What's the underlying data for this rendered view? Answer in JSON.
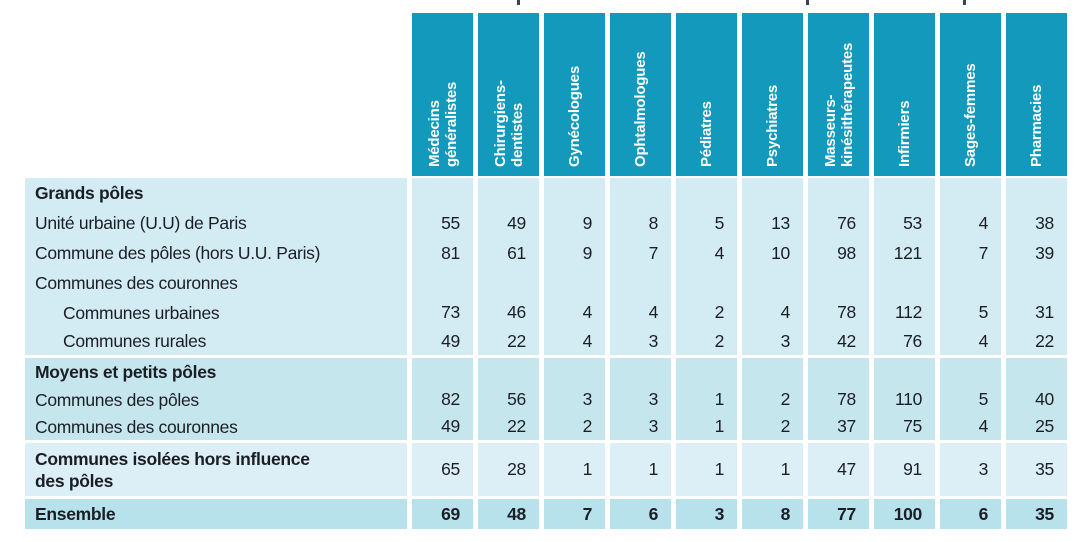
{
  "colors": {
    "header_teal": "#1299bb",
    "section_grands_poles_bg": "#d3ecf3",
    "section_moyens_petits_bg": "#c6e6ee",
    "section_isolees_bg": "#dceff6",
    "section_ensemble_bg": "#b7e1eb",
    "header_text": "#ffffff",
    "body_text": "#1c1e26"
  },
  "table": {
    "column_headers": [
      "Médecins\ngénéralistes",
      "Chirurgiens-\ndentistes",
      "Gynécologues",
      "Ophtalmologues",
      "Pédiatres",
      "Psychiatres",
      "Masseurs-\nkinésithérapeutes",
      "Infirmiers",
      "Sages-femmes",
      "Pharmacies"
    ],
    "rows": [
      {
        "label": "Grands pôles",
        "bold": true,
        "indent": false,
        "section": 1,
        "values": null
      },
      {
        "label": "Unité urbaine (U.U) de Paris",
        "bold": false,
        "indent": false,
        "section": 1,
        "values": [
          55,
          49,
          9,
          8,
          5,
          13,
          76,
          53,
          4,
          38
        ]
      },
      {
        "label": "Commune des pôles (hors U.U. Paris)",
        "bold": false,
        "indent": false,
        "section": 1,
        "values": [
          81,
          61,
          9,
          7,
          4,
          10,
          98,
          121,
          7,
          39
        ]
      },
      {
        "label": "Communes des couronnes",
        "bold": false,
        "indent": false,
        "section": 1,
        "values": null
      },
      {
        "label": "Communes urbaines",
        "bold": false,
        "indent": true,
        "section": 1,
        "values": [
          73,
          46,
          4,
          4,
          2,
          4,
          78,
          112,
          5,
          31
        ]
      },
      {
        "label": "Communes rurales",
        "bold": false,
        "indent": true,
        "section": 1,
        "values": [
          49,
          22,
          4,
          3,
          2,
          3,
          42,
          76,
          4,
          22
        ]
      },
      {
        "label": "Moyens et petits pôles",
        "bold": true,
        "indent": false,
        "section": 2,
        "values": null
      },
      {
        "label": "Communes des pôles",
        "bold": false,
        "indent": false,
        "section": 2,
        "values": [
          82,
          56,
          3,
          3,
          1,
          2,
          78,
          110,
          5,
          40
        ]
      },
      {
        "label": "Communes des couronnes",
        "bold": false,
        "indent": false,
        "section": 2,
        "values": [
          49,
          22,
          2,
          3,
          1,
          2,
          37,
          75,
          4,
          25
        ]
      },
      {
        "label": "Communes isolées hors influence\ndes pôles",
        "bold": true,
        "indent": false,
        "section": 3,
        "values": [
          65,
          28,
          1,
          1,
          1,
          1,
          47,
          91,
          3,
          35
        ]
      },
      {
        "label": "Ensemble",
        "bold": true,
        "indent": false,
        "section": 4,
        "values": [
          69,
          48,
          7,
          6,
          3,
          8,
          77,
          100,
          6,
          35
        ],
        "values_bold": true
      }
    ]
  },
  "chart_data": {
    "type": "table",
    "columns": [
      "Médecins généralistes",
      "Chirurgiens-dentistes",
      "Gynécologues",
      "Ophtalmologues",
      "Pédiatres",
      "Psychiatres",
      "Masseurs-kinésithérapeutes",
      "Infirmiers",
      "Sages-femmes",
      "Pharmacies"
    ],
    "row_labels": [
      "Grands pôles",
      "Unité urbaine (U.U) de Paris",
      "Commune des pôles (hors U.U. Paris)",
      "Communes des couronnes",
      "Communes urbaines",
      "Communes rurales",
      "Moyens et petits pôles",
      "Communes des pôles",
      "Communes des couronnes",
      "Communes isolées hors influence des pôles",
      "Ensemble"
    ],
    "values": [
      [
        null,
        null,
        null,
        null,
        null,
        null,
        null,
        null,
        null,
        null
      ],
      [
        55,
        49,
        9,
        8,
        5,
        13,
        76,
        53,
        4,
        38
      ],
      [
        81,
        61,
        9,
        7,
        4,
        10,
        98,
        121,
        7,
        39
      ],
      [
        null,
        null,
        null,
        null,
        null,
        null,
        null,
        null,
        null,
        null
      ],
      [
        73,
        46,
        4,
        4,
        2,
        4,
        78,
        112,
        5,
        31
      ],
      [
        49,
        22,
        4,
        3,
        2,
        3,
        42,
        76,
        4,
        22
      ],
      [
        null,
        null,
        null,
        null,
        null,
        null,
        null,
        null,
        null,
        null
      ],
      [
        82,
        56,
        3,
        3,
        1,
        2,
        78,
        110,
        5,
        40
      ],
      [
        49,
        22,
        2,
        3,
        1,
        2,
        37,
        75,
        4,
        25
      ],
      [
        65,
        28,
        1,
        1,
        1,
        1,
        47,
        91,
        3,
        35
      ],
      [
        69,
        48,
        7,
        6,
        3,
        8,
        77,
        100,
        6,
        35
      ]
    ]
  }
}
